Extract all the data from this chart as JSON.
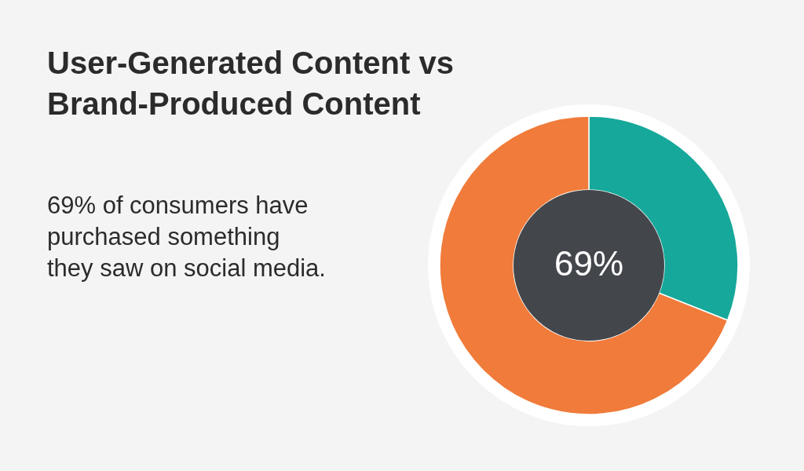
{
  "chart_data": {
    "type": "donut",
    "title": "User-Generated Content vs\nBrand-Produced Content",
    "subtitle": "69% of consumers have\npurchased something\nthey saw on social media.",
    "categories": [
      null,
      null
    ],
    "values": [
      31,
      69
    ],
    "colors": [
      "#16a89a",
      "#f07b3a"
    ],
    "value_labels": [
      null,
      "69%"
    ]
  }
}
